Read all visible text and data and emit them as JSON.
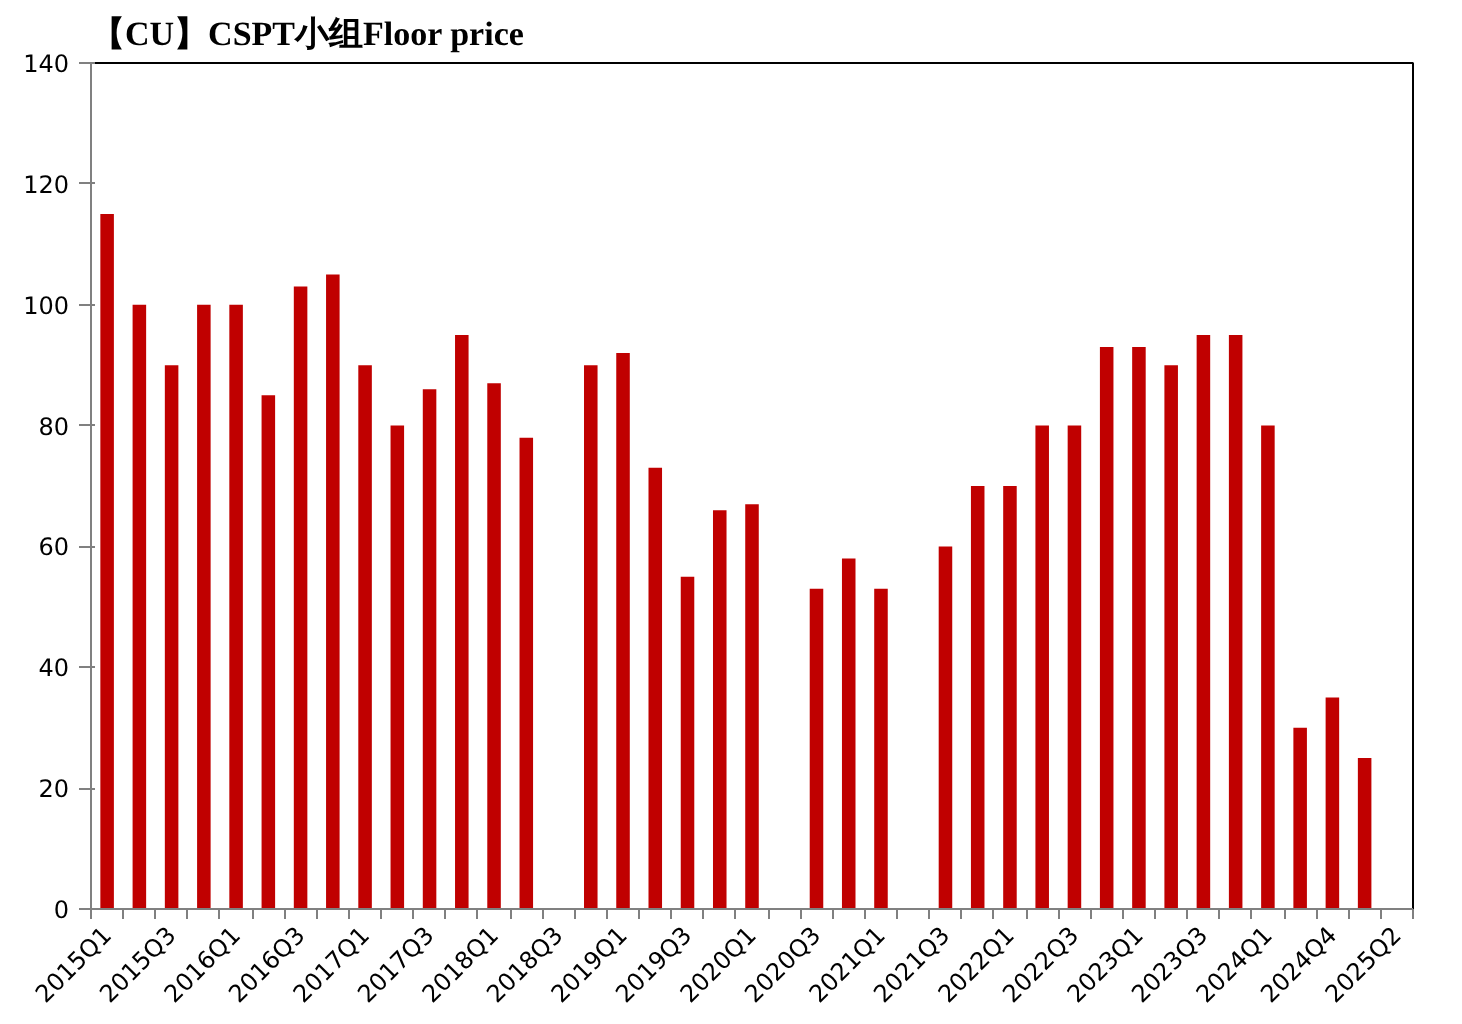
{
  "chart_data": {
    "type": "bar",
    "title": "【CU】CSPT小组Floor price",
    "categories": [
      "2015Q1",
      null,
      "2015Q3",
      null,
      "2016Q1",
      null,
      "2016Q3",
      null,
      "2017Q1",
      null,
      "2017Q3",
      null,
      "2018Q1",
      null,
      "2018Q3",
      null,
      "2019Q1",
      null,
      "2019Q3",
      null,
      "2020Q1",
      null,
      "2020Q3",
      null,
      "2021Q1",
      null,
      "2021Q3",
      null,
      "2022Q1",
      null,
      "2022Q3",
      null,
      "2023Q1",
      null,
      "2023Q3",
      null,
      "2024Q1",
      null,
      "2024Q4",
      null,
      "2025Q2"
    ],
    "values": [
      115,
      100,
      90,
      100,
      100,
      85,
      103,
      105,
      90,
      80,
      86,
      95,
      87,
      78,
      null,
      90,
      92,
      73,
      55,
      66,
      67,
      null,
      53,
      58,
      53,
      null,
      60,
      70,
      70,
      80,
      80,
      93,
      93,
      90,
      95,
      95,
      80,
      30,
      35,
      25,
      null
    ],
    "color": "#c00000",
    "ylim": [
      0,
      140
    ],
    "yticks": [
      0,
      20,
      40,
      60,
      80,
      100,
      120,
      140
    ],
    "grid": false
  }
}
